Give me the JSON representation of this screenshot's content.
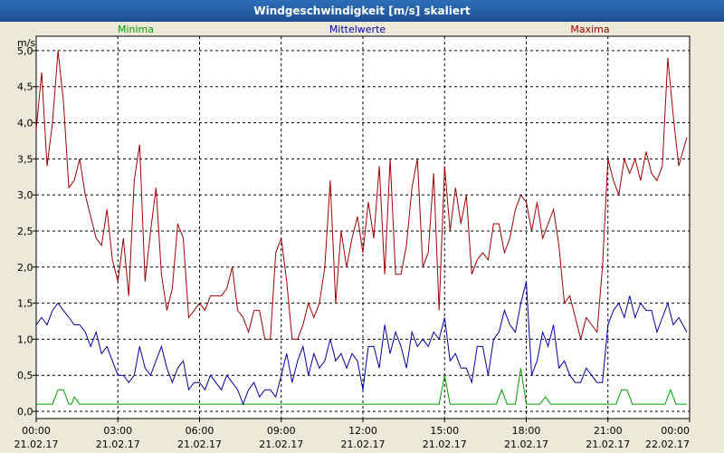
{
  "window": {
    "title": "Windgeschwindigkeit [m/s] skaliert"
  },
  "colors": {
    "minima": "#00a000",
    "mittelwerte": "#0000a0",
    "maxima": "#a00000",
    "plot_bg": "#ffffff",
    "grid": "#000000"
  },
  "chart_data": {
    "type": "line",
    "title": "Windgeschwindigkeit [m/s] skaliert",
    "ylabel": "m/s",
    "xlabel": "",
    "ylim": [
      -0.1,
      5.2
    ],
    "xlim": [
      0,
      24
    ],
    "grid": true,
    "legend_placement": "top",
    "y_ticks": [
      "0,0",
      "0,5",
      "1,0",
      "1,5",
      "2,0",
      "2,5",
      "3,0",
      "3,5",
      "4,0",
      "4,5",
      "5,0"
    ],
    "y_tick_values": [
      0,
      0.5,
      1,
      1.5,
      2,
      2.5,
      3,
      3.5,
      4,
      4.5,
      5
    ],
    "x_ticks": [
      {
        "time": "00:00",
        "date": "21.02.17"
      },
      {
        "time": "03:00",
        "date": "21.02.17"
      },
      {
        "time": "06:00",
        "date": "21.02.17"
      },
      {
        "time": "09:00",
        "date": "21.02.17"
      },
      {
        "time": "12:00",
        "date": "21.02.17"
      },
      {
        "time": "15:00",
        "date": "21.02.17"
      },
      {
        "time": "18:00",
        "date": "21.02.17"
      },
      {
        "time": "21:00",
        "date": "21.02.17"
      },
      {
        "time": "00:00",
        "date": "22.02.17"
      }
    ],
    "x_tick_values": [
      0,
      3,
      6,
      9,
      12,
      15,
      18,
      21,
      24
    ],
    "series": [
      {
        "name": "Minima",
        "color": "#00a000",
        "points": [
          [
            0,
            0.1
          ],
          [
            0.6,
            0.1
          ],
          [
            0.8,
            0.3
          ],
          [
            1.0,
            0.3
          ],
          [
            1.2,
            0.1
          ],
          [
            1.3,
            0.1
          ],
          [
            1.4,
            0.2
          ],
          [
            1.6,
            0.1
          ],
          [
            14.8,
            0.1
          ],
          [
            15.0,
            0.5
          ],
          [
            15.2,
            0.1
          ],
          [
            16.9,
            0.1
          ],
          [
            17.1,
            0.3
          ],
          [
            17.3,
            0.1
          ],
          [
            17.6,
            0.1
          ],
          [
            17.8,
            0.6
          ],
          [
            18.0,
            0.1
          ],
          [
            18.5,
            0.1
          ],
          [
            18.7,
            0.2
          ],
          [
            18.9,
            0.1
          ],
          [
            21.3,
            0.1
          ],
          [
            21.5,
            0.3
          ],
          [
            21.7,
            0.3
          ],
          [
            21.9,
            0.1
          ],
          [
            23.1,
            0.1
          ],
          [
            23.3,
            0.3
          ],
          [
            23.5,
            0.1
          ],
          [
            23.9,
            0.1
          ]
        ]
      },
      {
        "name": "Mittelwerte",
        "color": "#0000a0",
        "points": [
          [
            0,
            1.2
          ],
          [
            0.2,
            1.3
          ],
          [
            0.4,
            1.2
          ],
          [
            0.6,
            1.4
          ],
          [
            0.8,
            1.5
          ],
          [
            1.0,
            1.4
          ],
          [
            1.2,
            1.3
          ],
          [
            1.4,
            1.2
          ],
          [
            1.6,
            1.2
          ],
          [
            1.8,
            1.1
          ],
          [
            2.0,
            0.9
          ],
          [
            2.2,
            1.1
          ],
          [
            2.4,
            0.8
          ],
          [
            2.6,
            0.9
          ],
          [
            2.8,
            0.7
          ],
          [
            3.0,
            0.5
          ],
          [
            3.2,
            0.5
          ],
          [
            3.4,
            0.4
          ],
          [
            3.6,
            0.5
          ],
          [
            3.8,
            0.9
          ],
          [
            4.0,
            0.6
          ],
          [
            4.2,
            0.5
          ],
          [
            4.4,
            0.7
          ],
          [
            4.6,
            0.9
          ],
          [
            4.8,
            0.6
          ],
          [
            5.0,
            0.4
          ],
          [
            5.2,
            0.6
          ],
          [
            5.4,
            0.7
          ],
          [
            5.6,
            0.3
          ],
          [
            5.8,
            0.4
          ],
          [
            6.0,
            0.4
          ],
          [
            6.2,
            0.3
          ],
          [
            6.4,
            0.5
          ],
          [
            6.6,
            0.4
          ],
          [
            6.8,
            0.3
          ],
          [
            7.0,
            0.5
          ],
          [
            7.2,
            0.4
          ],
          [
            7.4,
            0.3
          ],
          [
            7.6,
            0.1
          ],
          [
            7.8,
            0.3
          ],
          [
            8.0,
            0.4
          ],
          [
            8.2,
            0.2
          ],
          [
            8.4,
            0.3
          ],
          [
            8.6,
            0.3
          ],
          [
            8.8,
            0.2
          ],
          [
            9.0,
            0.5
          ],
          [
            9.2,
            0.8
          ],
          [
            9.4,
            0.4
          ],
          [
            9.6,
            0.7
          ],
          [
            9.8,
            0.9
          ],
          [
            10.0,
            0.5
          ],
          [
            10.2,
            0.8
          ],
          [
            10.4,
            0.6
          ],
          [
            10.6,
            0.7
          ],
          [
            10.8,
            1.0
          ],
          [
            11.0,
            0.7
          ],
          [
            11.2,
            0.8
          ],
          [
            11.4,
            0.6
          ],
          [
            11.6,
            0.8
          ],
          [
            11.8,
            0.7
          ],
          [
            12.0,
            0.3
          ],
          [
            12.2,
            0.9
          ],
          [
            12.4,
            0.9
          ],
          [
            12.6,
            0.6
          ],
          [
            12.8,
            1.2
          ],
          [
            13.0,
            0.8
          ],
          [
            13.2,
            1.1
          ],
          [
            13.4,
            0.9
          ],
          [
            13.6,
            0.6
          ],
          [
            13.8,
            1.1
          ],
          [
            14.0,
            0.9
          ],
          [
            14.2,
            1.0
          ],
          [
            14.4,
            0.9
          ],
          [
            14.6,
            1.1
          ],
          [
            14.8,
            1.0
          ],
          [
            15.0,
            1.3
          ],
          [
            15.2,
            0.7
          ],
          [
            15.4,
            0.8
          ],
          [
            15.6,
            0.6
          ],
          [
            15.8,
            0.6
          ],
          [
            16.0,
            0.4
          ],
          [
            16.2,
            0.9
          ],
          [
            16.4,
            0.9
          ],
          [
            16.6,
            0.5
          ],
          [
            16.8,
            1.0
          ],
          [
            17.0,
            1.1
          ],
          [
            17.2,
            1.4
          ],
          [
            17.4,
            1.2
          ],
          [
            17.6,
            1.1
          ],
          [
            17.8,
            1.5
          ],
          [
            18.0,
            1.8
          ],
          [
            18.2,
            0.5
          ],
          [
            18.4,
            0.7
          ],
          [
            18.6,
            1.1
          ],
          [
            18.8,
            0.9
          ],
          [
            19.0,
            1.2
          ],
          [
            19.2,
            0.6
          ],
          [
            19.4,
            0.7
          ],
          [
            19.6,
            0.5
          ],
          [
            19.8,
            0.4
          ],
          [
            20.0,
            0.4
          ],
          [
            20.2,
            0.6
          ],
          [
            20.4,
            0.5
          ],
          [
            20.6,
            0.4
          ],
          [
            20.8,
            0.4
          ],
          [
            21.0,
            1.2
          ],
          [
            21.2,
            1.4
          ],
          [
            21.4,
            1.5
          ],
          [
            21.6,
            1.3
          ],
          [
            21.8,
            1.6
          ],
          [
            22.0,
            1.3
          ],
          [
            22.2,
            1.5
          ],
          [
            22.4,
            1.4
          ],
          [
            22.6,
            1.4
          ],
          [
            22.8,
            1.1
          ],
          [
            23.0,
            1.3
          ],
          [
            23.2,
            1.5
          ],
          [
            23.4,
            1.2
          ],
          [
            23.6,
            1.3
          ],
          [
            23.9,
            1.1
          ]
        ]
      },
      {
        "name": "Maxima",
        "color": "#a00000",
        "points": [
          [
            0,
            3.9
          ],
          [
            0.2,
            4.7
          ],
          [
            0.4,
            3.4
          ],
          [
            0.6,
            4.0
          ],
          [
            0.8,
            5.0
          ],
          [
            1.0,
            4.3
          ],
          [
            1.2,
            3.1
          ],
          [
            1.4,
            3.2
          ],
          [
            1.6,
            3.5
          ],
          [
            1.8,
            3.0
          ],
          [
            2.0,
            2.7
          ],
          [
            2.2,
            2.4
          ],
          [
            2.4,
            2.3
          ],
          [
            2.6,
            2.8
          ],
          [
            2.8,
            2.1
          ],
          [
            3.0,
            1.8
          ],
          [
            3.2,
            2.4
          ],
          [
            3.4,
            1.6
          ],
          [
            3.6,
            3.2
          ],
          [
            3.8,
            3.7
          ],
          [
            4.0,
            1.8
          ],
          [
            4.2,
            2.5
          ],
          [
            4.4,
            3.1
          ],
          [
            4.6,
            1.9
          ],
          [
            4.8,
            1.4
          ],
          [
            5.0,
            1.7
          ],
          [
            5.2,
            2.6
          ],
          [
            5.4,
            2.4
          ],
          [
            5.6,
            1.3
          ],
          [
            5.8,
            1.4
          ],
          [
            6.0,
            1.5
          ],
          [
            6.2,
            1.4
          ],
          [
            6.4,
            1.6
          ],
          [
            6.6,
            1.6
          ],
          [
            6.8,
            1.6
          ],
          [
            7.0,
            1.7
          ],
          [
            7.2,
            2.0
          ],
          [
            7.4,
            1.4
          ],
          [
            7.6,
            1.3
          ],
          [
            7.8,
            1.1
          ],
          [
            8.0,
            1.4
          ],
          [
            8.2,
            1.4
          ],
          [
            8.4,
            1.0
          ],
          [
            8.6,
            1.0
          ],
          [
            8.8,
            2.2
          ],
          [
            9.0,
            2.4
          ],
          [
            9.2,
            1.8
          ],
          [
            9.4,
            1.0
          ],
          [
            9.6,
            1.0
          ],
          [
            9.8,
            1.2
          ],
          [
            10.0,
            1.5
          ],
          [
            10.2,
            1.3
          ],
          [
            10.4,
            1.5
          ],
          [
            10.6,
            2.0
          ],
          [
            10.8,
            3.2
          ],
          [
            11.0,
            1.5
          ],
          [
            11.2,
            2.5
          ],
          [
            11.4,
            2.0
          ],
          [
            11.6,
            2.4
          ],
          [
            11.8,
            2.7
          ],
          [
            12.0,
            2.2
          ],
          [
            12.2,
            2.9
          ],
          [
            12.4,
            2.4
          ],
          [
            12.6,
            3.4
          ],
          [
            12.8,
            1.9
          ],
          [
            13.0,
            3.5
          ],
          [
            13.2,
            1.9
          ],
          [
            13.4,
            1.9
          ],
          [
            13.6,
            2.3
          ],
          [
            13.8,
            3.1
          ],
          [
            14.0,
            3.5
          ],
          [
            14.2,
            2.0
          ],
          [
            14.4,
            2.2
          ],
          [
            14.6,
            3.3
          ],
          [
            14.8,
            1.4
          ],
          [
            15.0,
            3.4
          ],
          [
            15.2,
            2.5
          ],
          [
            15.4,
            3.1
          ],
          [
            15.6,
            2.6
          ],
          [
            15.8,
            3.0
          ],
          [
            16.0,
            1.9
          ],
          [
            16.2,
            2.1
          ],
          [
            16.4,
            2.2
          ],
          [
            16.6,
            2.1
          ],
          [
            16.8,
            2.6
          ],
          [
            17.0,
            2.6
          ],
          [
            17.2,
            2.2
          ],
          [
            17.4,
            2.4
          ],
          [
            17.6,
            2.8
          ],
          [
            17.8,
            3.0
          ],
          [
            18.0,
            2.9
          ],
          [
            18.2,
            2.5
          ],
          [
            18.4,
            2.9
          ],
          [
            18.6,
            2.4
          ],
          [
            18.8,
            2.6
          ],
          [
            19.0,
            2.8
          ],
          [
            19.2,
            2.3
          ],
          [
            19.4,
            1.5
          ],
          [
            19.6,
            1.6
          ],
          [
            19.8,
            1.3
          ],
          [
            20.0,
            1.0
          ],
          [
            20.2,
            1.3
          ],
          [
            20.4,
            1.2
          ],
          [
            20.6,
            1.1
          ],
          [
            20.8,
            2.0
          ],
          [
            21.0,
            3.5
          ],
          [
            21.2,
            3.2
          ],
          [
            21.4,
            3.0
          ],
          [
            21.6,
            3.5
          ],
          [
            21.8,
            3.3
          ],
          [
            22.0,
            3.5
          ],
          [
            22.2,
            3.2
          ],
          [
            22.4,
            3.6
          ],
          [
            22.6,
            3.3
          ],
          [
            22.8,
            3.2
          ],
          [
            23.0,
            3.4
          ],
          [
            23.2,
            4.9
          ],
          [
            23.4,
            4.1
          ],
          [
            23.6,
            3.4
          ],
          [
            23.9,
            3.8
          ]
        ]
      }
    ]
  }
}
